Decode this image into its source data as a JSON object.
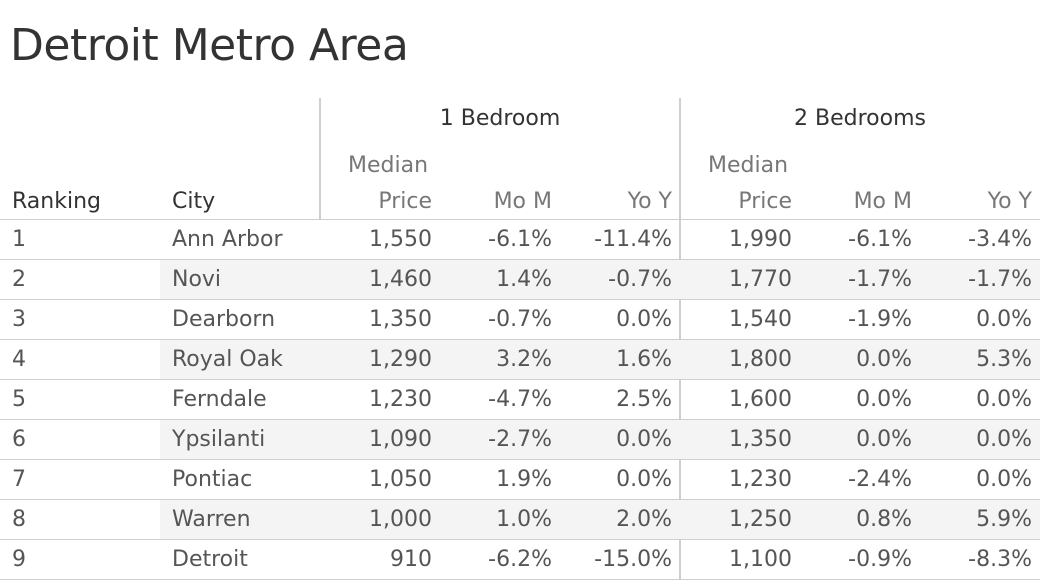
{
  "title": "Detroit Metro Area",
  "chart_data": {
    "type": "table",
    "title": "Detroit Metro Area",
    "column_groups": [
      {
        "name": "1 Bedroom",
        "columns": [
          "Median Price",
          "Mo M",
          "Yo Y"
        ]
      },
      {
        "name": "2 Bedrooms",
        "columns": [
          "Median Price",
          "Mo M",
          "Yo Y"
        ]
      }
    ],
    "headers": {
      "ranking": "Ranking",
      "city": "City",
      "median_line1": "Median",
      "median_line2": "Price",
      "mom": "Mo M",
      "yoy": "Yo Y"
    },
    "rows": [
      {
        "rank": "1",
        "city": "Ann Arbor",
        "b1_price": "1,550",
        "b1_mom": "-6.1%",
        "b1_yoy": "-11.4%",
        "b2_price": "1,990",
        "b2_mom": "-6.1%",
        "b2_yoy": "-3.4%"
      },
      {
        "rank": "2",
        "city": "Novi",
        "b1_price": "1,460",
        "b1_mom": "1.4%",
        "b1_yoy": "-0.7%",
        "b2_price": "1,770",
        "b2_mom": "-1.7%",
        "b2_yoy": "-1.7%"
      },
      {
        "rank": "3",
        "city": "Dearborn",
        "b1_price": "1,350",
        "b1_mom": "-0.7%",
        "b1_yoy": "0.0%",
        "b2_price": "1,540",
        "b2_mom": "-1.9%",
        "b2_yoy": "0.0%"
      },
      {
        "rank": "4",
        "city": "Royal Oak",
        "b1_price": "1,290",
        "b1_mom": "3.2%",
        "b1_yoy": "1.6%",
        "b2_price": "1,800",
        "b2_mom": "0.0%",
        "b2_yoy": "5.3%"
      },
      {
        "rank": "5",
        "city": "Ferndale",
        "b1_price": "1,230",
        "b1_mom": "-4.7%",
        "b1_yoy": "2.5%",
        "b2_price": "1,600",
        "b2_mom": "0.0%",
        "b2_yoy": "0.0%"
      },
      {
        "rank": "6",
        "city": "Ypsilanti",
        "b1_price": "1,090",
        "b1_mom": "-2.7%",
        "b1_yoy": "0.0%",
        "b2_price": "1,350",
        "b2_mom": "0.0%",
        "b2_yoy": "0.0%"
      },
      {
        "rank": "7",
        "city": "Pontiac",
        "b1_price": "1,050",
        "b1_mom": "1.9%",
        "b1_yoy": "0.0%",
        "b2_price": "1,230",
        "b2_mom": "-2.4%",
        "b2_yoy": "0.0%"
      },
      {
        "rank": "8",
        "city": "Warren",
        "b1_price": "1,000",
        "b1_mom": "1.0%",
        "b1_yoy": "2.0%",
        "b2_price": "1,250",
        "b2_mom": "0.8%",
        "b2_yoy": "5.9%"
      },
      {
        "rank": "9",
        "city": "Detroit",
        "b1_price": "910",
        "b1_mom": "-6.2%",
        "b1_yoy": "-15.0%",
        "b2_price": "1,100",
        "b2_mom": "-0.9%",
        "b2_yoy": "-8.3%"
      }
    ]
  },
  "colors": {
    "shade": "#f4f4f4",
    "grid": "#d0d0d0",
    "text": "#555555",
    "title": "#333333"
  }
}
